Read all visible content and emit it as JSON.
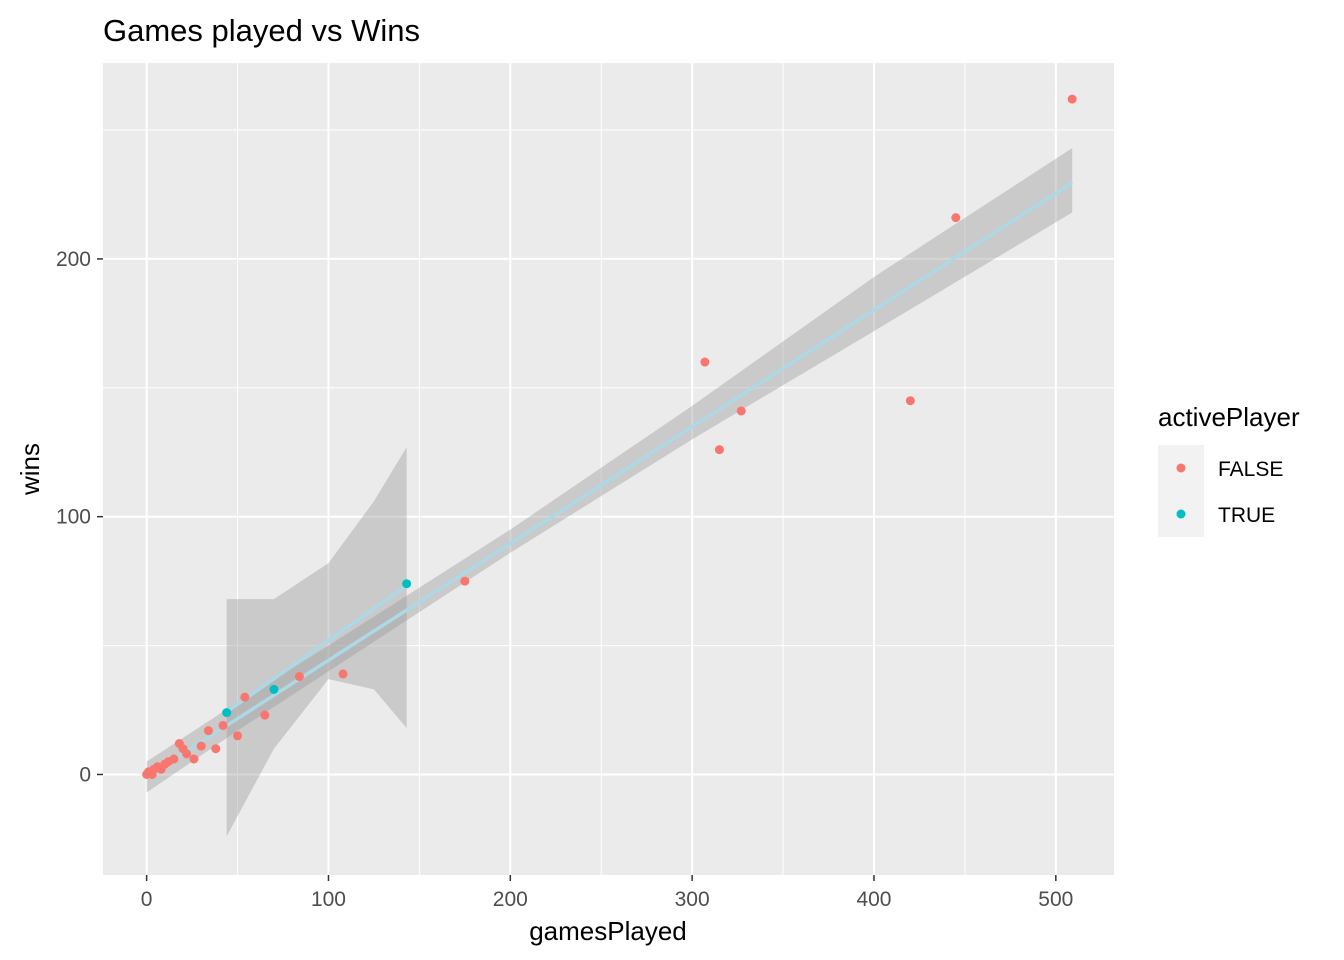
{
  "chart_data": {
    "type": "scatter",
    "title": "Games played vs Wins",
    "xlabel": "gamesPlayed",
    "ylabel": "wins",
    "xlim": [
      -24,
      532
    ],
    "ylim": [
      -39,
      276
    ],
    "x_ticks": [
      0,
      100,
      200,
      300,
      400,
      500
    ],
    "y_ticks": [
      0,
      100,
      200
    ],
    "x_tick_labels": [
      "0",
      "100",
      "200",
      "300",
      "400",
      "500"
    ],
    "y_tick_labels": [
      "0",
      "100",
      "200"
    ],
    "grid": true,
    "background": "#ebebeb",
    "legend": {
      "title": "activePlayer",
      "position": "right",
      "entries": [
        {
          "label": "FALSE",
          "color": "#f8766d"
        },
        {
          "label": "TRUE",
          "color": "#00bfc4"
        }
      ]
    },
    "series": [
      {
        "name": "FALSE",
        "color": "#f8766d",
        "points": [
          [
            0,
            0
          ],
          [
            1,
            1
          ],
          [
            2,
            1
          ],
          [
            3,
            0
          ],
          [
            4,
            2
          ],
          [
            6,
            3
          ],
          [
            8,
            2
          ],
          [
            10,
            4
          ],
          [
            12,
            5
          ],
          [
            15,
            6
          ],
          [
            18,
            12
          ],
          [
            20,
            10
          ],
          [
            22,
            8
          ],
          [
            26,
            6
          ],
          [
            30,
            11
          ],
          [
            34,
            17
          ],
          [
            38,
            10
          ],
          [
            42,
            19
          ],
          [
            50,
            15
          ],
          [
            54,
            30
          ],
          [
            65,
            23
          ],
          [
            84,
            38
          ],
          [
            108,
            39
          ],
          [
            175,
            75
          ],
          [
            307,
            160
          ],
          [
            315,
            126
          ],
          [
            327,
            141
          ],
          [
            420,
            145
          ],
          [
            445,
            216
          ],
          [
            509,
            262
          ]
        ]
      },
      {
        "name": "TRUE",
        "color": "#00bfc4",
        "points": [
          [
            44,
            24
          ],
          [
            70,
            33
          ],
          [
            143,
            74
          ]
        ]
      }
    ],
    "trend_lines": [
      {
        "series": "FALSE",
        "color": "#add8e6",
        "x_range": [
          0,
          509
        ],
        "intercept": -1.0,
        "slope": 0.453,
        "band": [
          [
            0,
            -7,
            5
          ],
          [
            50,
            17,
            28
          ],
          [
            100,
            40,
            50
          ],
          [
            200,
            86,
            95
          ],
          [
            300,
            130,
            143
          ],
          [
            400,
            172,
            193
          ],
          [
            509,
            218,
            243
          ]
        ]
      },
      {
        "series": "TRUE",
        "color": "#add8e6",
        "x_range": [
          44,
          143
        ],
        "intercept": 2.5,
        "slope": 0.495,
        "band": [
          [
            44,
            -24,
            68
          ],
          [
            70,
            10,
            68
          ],
          [
            100,
            37,
            82
          ],
          [
            125,
            33,
            106
          ],
          [
            143,
            18,
            127
          ]
        ]
      }
    ]
  }
}
